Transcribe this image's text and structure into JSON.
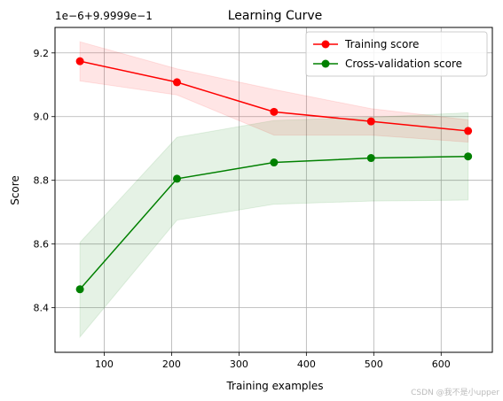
{
  "chart_data": {
    "type": "line",
    "title": "Learning Curve",
    "xlabel": "Training examples",
    "ylabel": "Score",
    "offset_label": "1e−6+9.9999e−1",
    "grid": true,
    "legend_position": "top-right",
    "xlim": [
      27,
      676
    ],
    "ylim": [
      8.26,
      9.28
    ],
    "xticks": [
      100,
      200,
      300,
      400,
      500,
      600
    ],
    "yticks": [
      8.4,
      8.6,
      8.8,
      9.0,
      9.2
    ],
    "ytick_labels": [
      "8.4",
      "8.6",
      "8.8",
      "9.0",
      "9.2"
    ],
    "x": [
      64,
      208,
      352,
      496,
      640
    ],
    "series": [
      {
        "name": "Training score",
        "color": "#ff0000",
        "band_color": "#ff0000",
        "values": [
          9.174,
          9.108,
          9.015,
          8.985,
          8.955
        ],
        "upper": [
          9.235,
          9.15,
          9.085,
          9.025,
          8.99
        ],
        "lower": [
          9.112,
          9.068,
          8.942,
          8.942,
          8.92
        ]
      },
      {
        "name": "Cross-validation score",
        "color": "#008000",
        "band_color": "#008000",
        "values": [
          8.458,
          8.805,
          8.856,
          8.87,
          8.875
        ],
        "upper": [
          8.605,
          8.935,
          8.988,
          8.998,
          9.012
        ],
        "lower": [
          8.308,
          8.675,
          8.725,
          8.735,
          8.738
        ]
      }
    ]
  },
  "watermark": "CSDN @我不是小upper"
}
